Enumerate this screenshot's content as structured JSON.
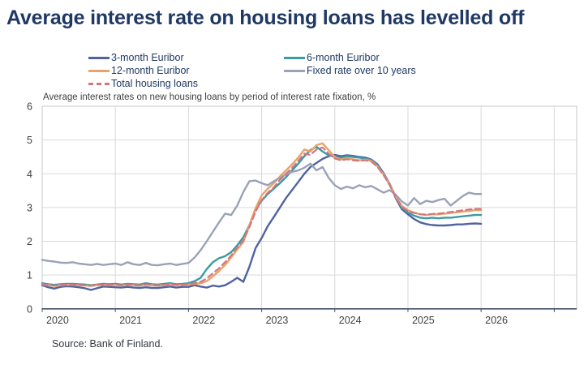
{
  "title": "Average interest rate on housing loans has levelled off",
  "subtitle": "Average interest rates on new housing loans by period of interest rate fixation, %",
  "source": "Source: Bank of Finland.",
  "colors": {
    "title_text": "#1f3864",
    "legend_text": "#1f3864",
    "axis_text": "#3f3f3f",
    "gridline": "#d9d9d9",
    "plot_border": "#c4cad2",
    "baseline": "#44506b",
    "background": "#ffffff"
  },
  "chart_data": {
    "type": "line",
    "title": "Average interest rate on housing loans has levelled off",
    "subtitle": "Average interest rates on new housing loans by period of interest rate fixation, %",
    "x_unit": "month",
    "x_start": "2020-01",
    "x_end": "2026-01",
    "x_tick_labels": [
      "2020",
      "2021",
      "2022",
      "2023",
      "2024",
      "2025",
      "2026"
    ],
    "y_ticks": [
      0,
      1,
      2,
      3,
      4,
      5,
      6
    ],
    "ylim": [
      0,
      6
    ],
    "grid": true,
    "legend_position": "top",
    "series": [
      {
        "name": "3-month Euribor",
        "color": "#5063a0",
        "style": "solid",
        "values": [
          0.7,
          0.64,
          0.6,
          0.65,
          0.67,
          0.66,
          0.64,
          0.61,
          0.56,
          0.61,
          0.66,
          0.65,
          0.64,
          0.63,
          0.65,
          0.63,
          0.62,
          0.64,
          0.62,
          0.62,
          0.64,
          0.66,
          0.63,
          0.65,
          0.65,
          0.7,
          0.66,
          0.63,
          0.69,
          0.66,
          0.7,
          0.8,
          0.92,
          0.8,
          1.25,
          1.8,
          2.1,
          2.45,
          2.72,
          3.0,
          3.28,
          3.52,
          3.76,
          4.0,
          4.2,
          4.32,
          4.44,
          4.52,
          4.56,
          4.52,
          4.55,
          4.53,
          4.5,
          4.48,
          4.42,
          4.28,
          4.02,
          3.7,
          3.28,
          2.95,
          2.8,
          2.66,
          2.56,
          2.51,
          2.48,
          2.47,
          2.47,
          2.48,
          2.5,
          2.5,
          2.52,
          2.53,
          2.52
        ]
      },
      {
        "name": "6-month Euribor",
        "color": "#3b9aa4",
        "style": "solid",
        "values": [
          0.76,
          0.73,
          0.71,
          0.73,
          0.74,
          0.74,
          0.73,
          0.72,
          0.7,
          0.72,
          0.74,
          0.73,
          0.74,
          0.72,
          0.74,
          0.73,
          0.72,
          0.76,
          0.73,
          0.72,
          0.74,
          0.76,
          0.73,
          0.74,
          0.76,
          0.82,
          0.92,
          1.18,
          1.38,
          1.5,
          1.56,
          1.68,
          1.88,
          2.12,
          2.48,
          2.95,
          3.2,
          3.4,
          3.56,
          3.72,
          3.9,
          4.1,
          4.3,
          4.52,
          4.7,
          4.8,
          4.66,
          4.55,
          4.5,
          4.48,
          4.52,
          4.5,
          4.48,
          4.45,
          4.4,
          4.25,
          4.0,
          3.7,
          3.32,
          3.0,
          2.85,
          2.76,
          2.7,
          2.68,
          2.7,
          2.68,
          2.7,
          2.7,
          2.72,
          2.74,
          2.76,
          2.78,
          2.78
        ]
      },
      {
        "name": "12-month Euribor",
        "color": "#e9a26a",
        "style": "solid",
        "values": [
          0.72,
          0.7,
          0.68,
          0.7,
          0.71,
          0.71,
          0.7,
          0.69,
          0.68,
          0.7,
          0.71,
          0.7,
          0.71,
          0.69,
          0.71,
          0.7,
          0.69,
          0.71,
          0.7,
          0.69,
          0.7,
          0.72,
          0.7,
          0.71,
          0.72,
          0.74,
          0.76,
          0.82,
          0.96,
          1.12,
          1.3,
          1.52,
          1.76,
          1.98,
          2.48,
          2.98,
          3.36,
          3.56,
          3.72,
          3.92,
          4.1,
          4.28,
          4.48,
          4.72,
          4.66,
          4.85,
          4.9,
          4.7,
          4.5,
          4.42,
          4.46,
          4.43,
          4.4,
          4.42,
          4.38,
          4.22,
          3.98,
          3.68,
          3.32,
          3.05,
          2.92,
          2.85,
          2.8,
          2.78,
          2.8,
          2.8,
          2.82,
          2.84,
          2.86,
          2.88,
          2.9,
          2.92,
          2.92
        ]
      },
      {
        "name": "Fixed rate over 10 years",
        "color": "#9aa2b8",
        "style": "solid",
        "values": [
          1.45,
          1.42,
          1.4,
          1.37,
          1.36,
          1.38,
          1.34,
          1.32,
          1.3,
          1.33,
          1.3,
          1.32,
          1.34,
          1.3,
          1.38,
          1.32,
          1.3,
          1.36,
          1.3,
          1.29,
          1.32,
          1.34,
          1.3,
          1.33,
          1.36,
          1.52,
          1.74,
          2.0,
          2.28,
          2.56,
          2.82,
          2.78,
          3.06,
          3.46,
          3.78,
          3.8,
          3.72,
          3.66,
          3.78,
          3.88,
          3.98,
          4.06,
          4.1,
          4.18,
          4.3,
          4.1,
          4.2,
          3.88,
          3.66,
          3.55,
          3.62,
          3.57,
          3.66,
          3.6,
          3.64,
          3.54,
          3.44,
          3.52,
          3.38,
          3.18,
          3.06,
          3.28,
          3.1,
          3.2,
          3.16,
          3.22,
          3.26,
          3.06,
          3.2,
          3.34,
          3.44,
          3.4,
          3.4
        ]
      },
      {
        "name": "Total housing loans",
        "color": "#d4767e",
        "style": "dashed",
        "values": [
          0.73,
          0.71,
          0.69,
          0.71,
          0.72,
          0.72,
          0.71,
          0.7,
          0.69,
          0.71,
          0.72,
          0.71,
          0.72,
          0.7,
          0.72,
          0.71,
          0.7,
          0.72,
          0.71,
          0.7,
          0.71,
          0.73,
          0.71,
          0.72,
          0.73,
          0.76,
          0.8,
          0.9,
          1.05,
          1.2,
          1.38,
          1.58,
          1.82,
          2.02,
          2.42,
          2.88,
          3.22,
          3.44,
          3.6,
          3.82,
          4.0,
          4.18,
          4.38,
          4.6,
          4.56,
          4.72,
          4.78,
          4.6,
          4.45,
          4.4,
          4.43,
          4.4,
          4.38,
          4.4,
          4.36,
          4.2,
          3.96,
          3.66,
          3.3,
          3.02,
          2.9,
          2.84,
          2.8,
          2.79,
          2.81,
          2.82,
          2.84,
          2.87,
          2.89,
          2.92,
          2.94,
          2.96,
          2.96
        ]
      }
    ]
  }
}
